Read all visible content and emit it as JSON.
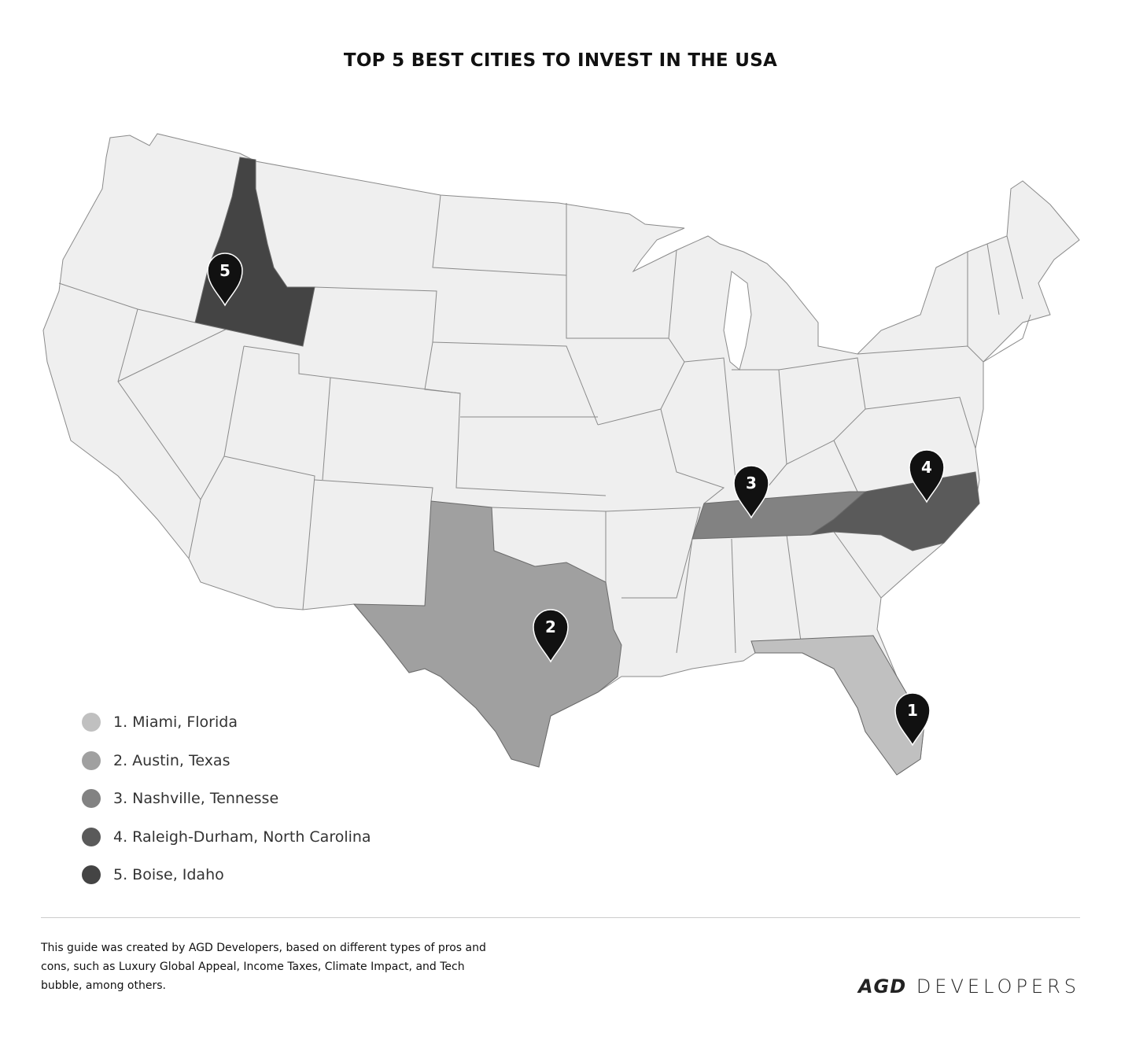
{
  "title": "TOP 5 BEST CITIES TO INVEST IN THE USA",
  "map": {
    "base_color": "#efefef",
    "border_color": "#8a8a8a",
    "pin_color": "#111111",
    "highlighted": [
      {
        "rank": "1",
        "state": "Florida",
        "color": "#c0c0c0"
      },
      {
        "rank": "2",
        "state": "Texas",
        "color": "#a0a0a0"
      },
      {
        "rank": "3",
        "state": "Tennessee",
        "color": "#828282"
      },
      {
        "rank": "4",
        "state": "North Carolina",
        "color": "#5a5a5a"
      },
      {
        "rank": "5",
        "state": "Idaho",
        "color": "#444444"
      }
    ]
  },
  "legend": [
    {
      "label": "1. Miami, Florida",
      "color": "#c0c0c0"
    },
    {
      "label": "2. Austin, Texas",
      "color": "#a0a0a0"
    },
    {
      "label": "3. Nashville, Tennesse",
      "color": "#828282"
    },
    {
      "label": "4. Raleigh-Durham, North Carolina",
      "color": "#5a5a5a"
    },
    {
      "label": "5. Boise, Idaho",
      "color": "#444444"
    }
  ],
  "footer": {
    "note": "This guide was created by AGD Developers, based on different types of pros and cons, such as Luxury Global Appeal, Income Taxes, Climate Impact, and Tech bubble, among others.",
    "logo_mark": "AGD",
    "logo_text": "DEVELOPERS"
  }
}
